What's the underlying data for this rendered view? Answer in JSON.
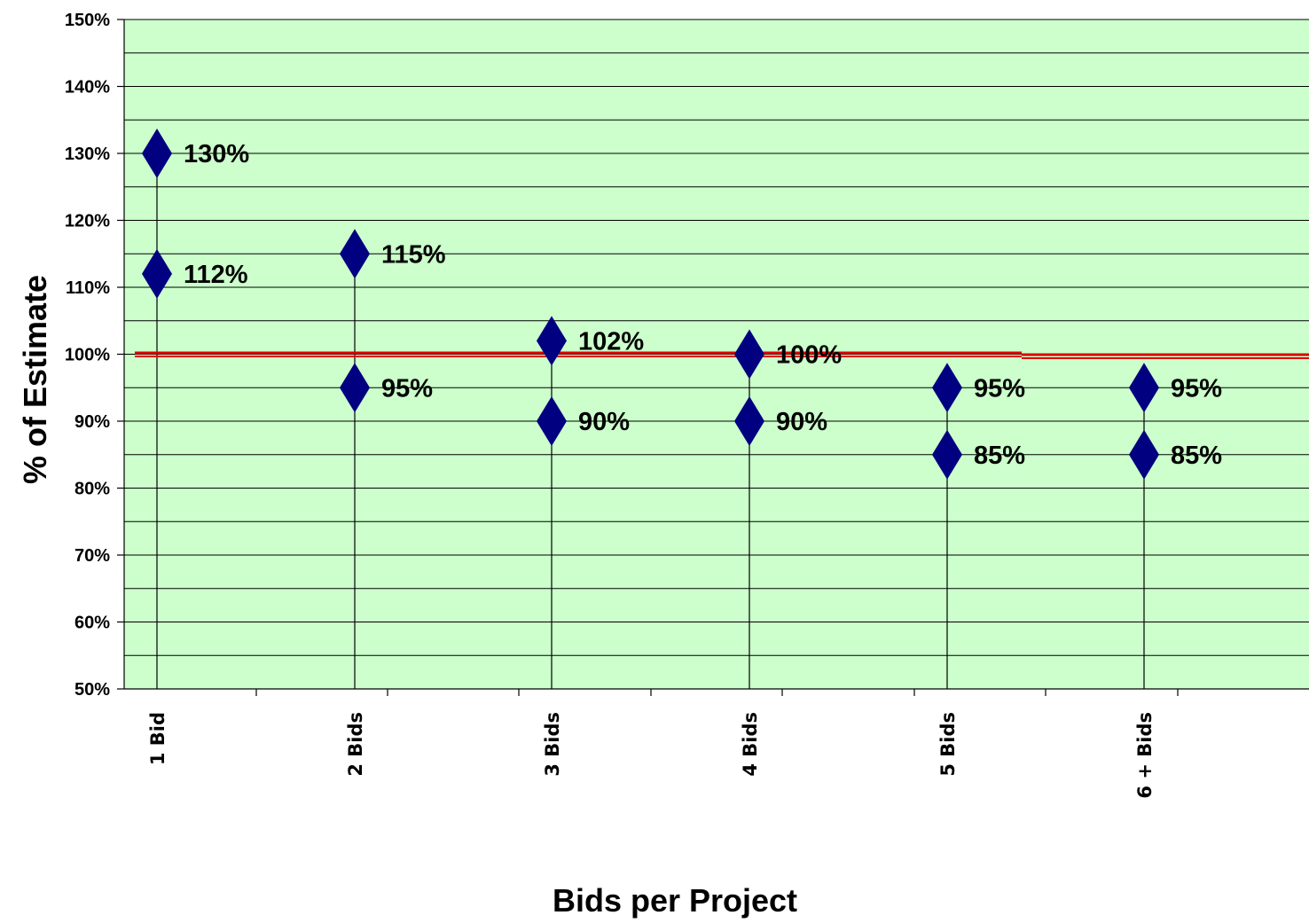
{
  "chart_data": {
    "type": "scatter",
    "title": "",
    "xlabel": "Bids per Project",
    "ylabel": "% of Estimate",
    "categories": [
      "1 Bid",
      "2 Bids",
      "3 Bids",
      "4  Bids",
      "5 Bids",
      "6 + Bids"
    ],
    "high": [
      130,
      115,
      102,
      100,
      95,
      95
    ],
    "low": [
      112,
      95,
      90,
      90,
      85,
      85
    ],
    "high_labels": [
      "130%",
      "115%",
      "102%",
      "100%",
      "95%",
      "95%"
    ],
    "low_labels": [
      "112%",
      "95%",
      "90%",
      "90%",
      "85%",
      "85%"
    ],
    "ylim": [
      50,
      150
    ],
    "yticks": [
      "50%",
      "60%",
      "70%",
      "80%",
      "90%",
      "100%",
      "110%",
      "120%",
      "130%",
      "140%",
      "150%"
    ],
    "reference_line": 100,
    "grid": true,
    "colors": {
      "plot_background": "#ccffcc",
      "marker": "#000080",
      "reference_line": "#dd0000",
      "grid": "#000000"
    }
  }
}
